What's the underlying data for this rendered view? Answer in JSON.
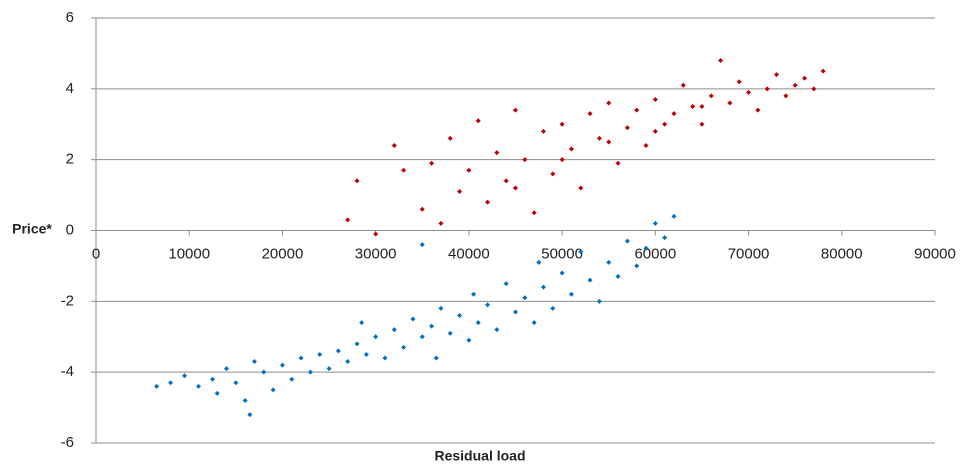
{
  "chart_data": {
    "type": "scatter",
    "x_label": "Residual load",
    "y_label": "Price*",
    "xlim": [
      0,
      90000
    ],
    "xticks": [
      0,
      10000,
      20000,
      30000,
      40000,
      50000,
      60000,
      70000,
      80000,
      90000
    ],
    "ylim": [
      -6,
      6
    ],
    "yticks": [
      -6,
      -4,
      -2,
      0,
      2,
      4,
      6
    ],
    "grid": true,
    "series": [
      {
        "color": "#0070c0",
        "x": [
          6500,
          8000,
          9500,
          11000,
          12500,
          13000,
          14000,
          15000,
          16000,
          16500,
          17000,
          18000,
          19000,
          20000,
          21000,
          22000,
          23000,
          24000,
          25000,
          26000,
          27000,
          28000,
          28500,
          29000,
          30000,
          31000,
          32000,
          33000,
          34000,
          35000,
          36000,
          36500,
          37000,
          38000,
          39000,
          40000,
          40500,
          41000,
          42000,
          43000,
          44000,
          45000,
          46000,
          47000,
          47500,
          48000,
          49000,
          50000,
          51000,
          52000,
          53000,
          54000,
          55000,
          56000,
          57000,
          58000,
          59000,
          60000,
          61000,
          62000,
          35000
        ],
        "values": [
          -4.4,
          -4.3,
          -4.1,
          -4.4,
          -4.2,
          -4.6,
          -3.9,
          -4.3,
          -4.8,
          -5.2,
          -3.7,
          -4.0,
          -4.5,
          -3.8,
          -4.2,
          -3.6,
          -4.0,
          -3.5,
          -3.9,
          -3.4,
          -3.7,
          -3.2,
          -2.6,
          -3.5,
          -3.0,
          -3.6,
          -2.8,
          -3.3,
          -2.5,
          -3.0,
          -2.7,
          -3.6,
          -2.2,
          -2.9,
          -2.4,
          -3.1,
          -1.8,
          -2.6,
          -2.1,
          -2.8,
          -1.5,
          -2.3,
          -1.9,
          -2.6,
          -0.9,
          -1.6,
          -2.2,
          -1.2,
          -1.8,
          -0.6,
          -1.4,
          -2.0,
          -0.9,
          -1.3,
          -0.3,
          -1.0,
          -0.5,
          0.2,
          -0.2,
          0.4,
          -0.4
        ]
      },
      {
        "color": "#c00000",
        "x": [
          27000,
          28000,
          30000,
          32000,
          33000,
          35000,
          36000,
          37000,
          38000,
          39000,
          40000,
          41000,
          42000,
          43000,
          44000,
          45000,
          46000,
          47000,
          48000,
          49000,
          50000,
          51000,
          52000,
          53000,
          54000,
          55000,
          56000,
          57000,
          58000,
          59000,
          60000,
          61000,
          62000,
          63000,
          64000,
          65000,
          66000,
          67000,
          68000,
          69000,
          70000,
          71000,
          72000,
          73000,
          74000,
          75000,
          76000,
          77000,
          78000,
          50000,
          55000,
          45000,
          60000,
          65000
        ],
        "values": [
          0.3,
          1.4,
          -0.1,
          2.4,
          1.7,
          0.6,
          1.9,
          0.2,
          2.6,
          1.1,
          1.7,
          3.1,
          0.8,
          2.2,
          1.4,
          3.4,
          2.0,
          0.5,
          2.8,
          1.6,
          3.0,
          2.3,
          1.2,
          3.3,
          2.6,
          3.6,
          1.9,
          2.9,
          3.4,
          2.4,
          3.7,
          3.0,
          3.3,
          4.1,
          3.5,
          3.0,
          3.8,
          4.8,
          3.6,
          4.2,
          3.9,
          3.4,
          4.0,
          4.4,
          3.8,
          4.1,
          4.3,
          4.0,
          4.5,
          2.0,
          2.5,
          1.2,
          2.8,
          3.5
        ]
      }
    ]
  }
}
